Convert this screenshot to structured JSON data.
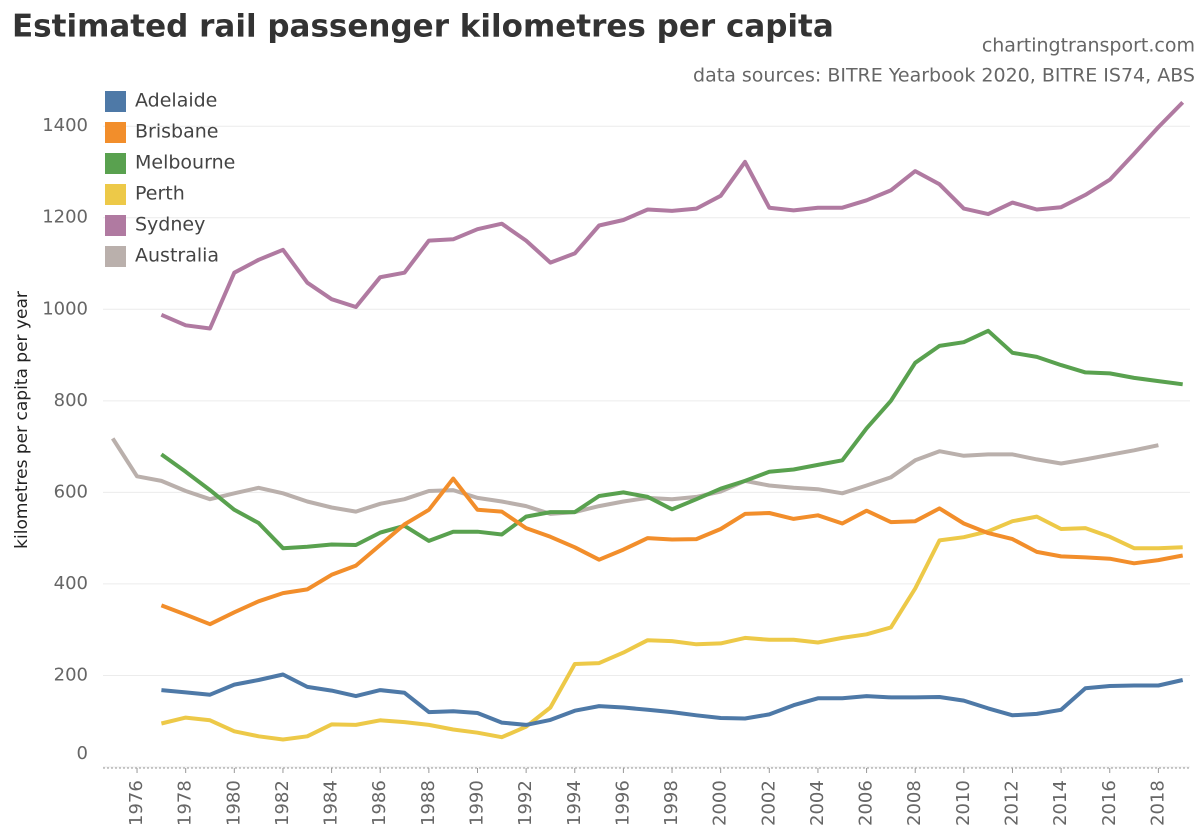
{
  "chart_data": {
    "type": "line",
    "title": "Estimated rail passenger kilometres per capita",
    "subtitle": "chartingtransport.com",
    "source": "data sources: BITRE Yearbook 2020, BITRE IS74, ABS",
    "y_label": "kilometres per capita per year",
    "x": [
      1975,
      1976,
      1977,
      1978,
      1979,
      1980,
      1981,
      1982,
      1983,
      1984,
      1985,
      1986,
      1987,
      1988,
      1989,
      1990,
      1991,
      1992,
      1993,
      1994,
      1995,
      1996,
      1997,
      1998,
      1999,
      2000,
      2001,
      2002,
      2003,
      2004,
      2005,
      2006,
      2007,
      2008,
      2009,
      2010,
      2011,
      2012,
      2013,
      2014,
      2015,
      2016,
      2017,
      2018,
      2019
    ],
    "xlim": [
      1974.6,
      2019.3
    ],
    "xticks": [
      1976,
      1978,
      1980,
      1982,
      1984,
      1986,
      1988,
      1990,
      1992,
      1994,
      1996,
      1998,
      2000,
      2002,
      2004,
      2006,
      2008,
      2010,
      2012,
      2014,
      2016,
      2018
    ],
    "ylim": [
      0,
      1490
    ],
    "yticks": [
      0,
      200,
      400,
      600,
      800,
      1000,
      1200,
      1400
    ],
    "grid": true,
    "legend": "top-left",
    "series": [
      {
        "name": "Adelaide",
        "color": "#4e79a7",
        "values": [
          null,
          null,
          168,
          163,
          158,
          180,
          190,
          202,
          175,
          167,
          155,
          168,
          162,
          120,
          122,
          118,
          97,
          92,
          103,
          123,
          133,
          130,
          125,
          120,
          113,
          107,
          106,
          115,
          135,
          150,
          150,
          155,
          152,
          152,
          153,
          145,
          128,
          113,
          116,
          125,
          172,
          177,
          178,
          178,
          190
        ]
      },
      {
        "name": "Brisbane",
        "color": "#f28e2b",
        "values": [
          null,
          null,
          353,
          333,
          312,
          338,
          362,
          380,
          388,
          420,
          440,
          485,
          530,
          562,
          630,
          562,
          558,
          522,
          503,
          480,
          453,
          475,
          500,
          497,
          498,
          520,
          553,
          555,
          542,
          550,
          532,
          560,
          535,
          537,
          565,
          532,
          511,
          498,
          470,
          460,
          458,
          455,
          445,
          452,
          462
        ]
      },
      {
        "name": "Melbourne",
        "color": "#59a14f",
        "values": [
          null,
          null,
          683,
          645,
          605,
          562,
          533,
          478,
          481,
          486,
          485,
          512,
          527,
          494,
          514,
          514,
          508,
          547,
          557,
          557,
          592,
          600,
          590,
          563,
          585,
          608,
          625,
          645,
          650,
          660,
          670,
          740,
          800,
          883,
          920,
          928,
          953,
          905,
          896,
          878,
          862,
          860,
          850,
          843,
          836
        ]
      },
      {
        "name": "Perth",
        "color": "#edc948",
        "values": [
          null,
          null,
          95,
          108,
          102,
          78,
          67,
          60,
          67,
          93,
          92,
          102,
          98,
          92,
          82,
          75,
          65,
          88,
          130,
          225,
          227,
          250,
          277,
          275,
          268,
          270,
          282,
          278,
          278,
          272,
          282,
          290,
          305,
          390,
          495,
          502,
          515,
          537,
          547,
          520,
          522,
          503,
          478,
          478,
          480
        ]
      },
      {
        "name": "Sydney",
        "color": "#b07aa1",
        "values": [
          null,
          null,
          988,
          965,
          958,
          1080,
          1108,
          1130,
          1058,
          1022,
          1005,
          1070,
          1080,
          1150,
          1153,
          1175,
          1187,
          1150,
          1102,
          1122,
          1183,
          1195,
          1218,
          1215,
          1220,
          1248,
          1322,
          1222,
          1216,
          1222,
          1222,
          1238,
          1260,
          1302,
          1273,
          1220,
          1208,
          1233,
          1218,
          1223,
          1250,
          1283,
          1340,
          1398,
          1452
        ]
      },
      {
        "name": "Australia",
        "color": "#bab0ac",
        "values": [
          718,
          635,
          625,
          603,
          585,
          598,
          610,
          598,
          580,
          567,
          558,
          575,
          585,
          603,
          605,
          588,
          580,
          570,
          553,
          557,
          570,
          580,
          588,
          585,
          590,
          602,
          625,
          615,
          610,
          607,
          598,
          615,
          633,
          670,
          690,
          680,
          683,
          683,
          672,
          663,
          672,
          682,
          692,
          703,
          null
        ]
      }
    ]
  }
}
